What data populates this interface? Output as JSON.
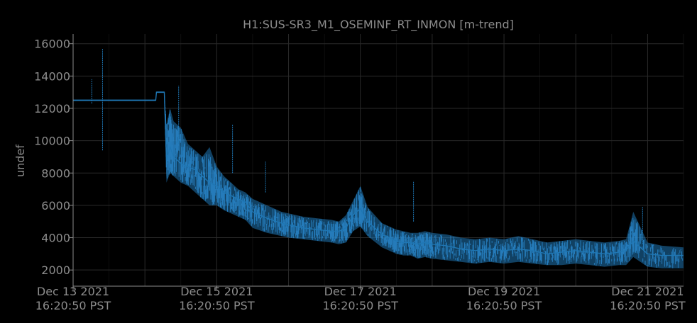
{
  "chart_data": {
    "type": "line",
    "title": "H1:SUS-SR3_M1_OSEMINF_RT_INMON [m-trend]",
    "xlabel": "",
    "ylabel": "undef",
    "x_ticks": [
      {
        "line1": "Dec 13 2021",
        "line2": "16:20:50 PST",
        "day": 0
      },
      {
        "line1": "Dec 15 2021",
        "line2": "16:20:50 PST",
        "day": 2
      },
      {
        "line1": "Dec 17 2021",
        "line2": "16:20:50 PST",
        "day": 4
      },
      {
        "line1": "Dec 19 2021",
        "line2": "16:20:50 PST",
        "day": 6
      },
      {
        "line1": "Dec 21 2021",
        "line2": "16:20:50 PST",
        "day": 8
      }
    ],
    "y_ticks": [
      2000,
      4000,
      6000,
      8000,
      10000,
      12000,
      14000,
      16000
    ],
    "xlim": [
      0,
      8.5
    ],
    "ylim": [
      1000,
      16600
    ],
    "grid": true,
    "colors": {
      "series": "#1f77b4",
      "background": "#000000",
      "text": "#8c8c8c",
      "grid": "#2a2a2a"
    },
    "series": [
      {
        "x": [
          0,
          0.5,
          1.0,
          1.15,
          1.16,
          1.27,
          1.3,
          1.35,
          1.4,
          1.5,
          1.6,
          1.7,
          1.8,
          1.9,
          2.0,
          2.1,
          2.2,
          2.3,
          2.4,
          2.5,
          2.7,
          2.9,
          3.0,
          3.2,
          3.4,
          3.6,
          3.7,
          3.8,
          3.9,
          4.0,
          4.1,
          4.3,
          4.4,
          4.5,
          4.6,
          4.7,
          4.8,
          4.9,
          5.0,
          5.2,
          5.4,
          5.6,
          5.8,
          6.0,
          6.2,
          6.4,
          6.6,
          6.8,
          7.0,
          7.2,
          7.4,
          7.6,
          7.7,
          7.8,
          8.0,
          8.2,
          8.5
        ],
        "y": [
          12500,
          12500,
          12500,
          12500,
          13000,
          13000,
          8800,
          9600,
          9000,
          8600,
          8400,
          8200,
          7800,
          7400,
          7200,
          6800,
          6600,
          6400,
          6200,
          5600,
          5200,
          4900,
          4800,
          4600,
          4500,
          4400,
          4400,
          4600,
          5400,
          5800,
          5000,
          4200,
          4000,
          3800,
          3700,
          3700,
          3600,
          3700,
          3600,
          3500,
          3300,
          3200,
          3300,
          3200,
          3300,
          3200,
          3000,
          3100,
          3200,
          3100,
          3000,
          3100,
          3200,
          3800,
          3000,
          2900,
          2900
        ],
        "band_low": [
          12450,
          12450,
          12450,
          12450,
          12950,
          12950,
          7400,
          8000,
          7800,
          7400,
          7200,
          6800,
          6400,
          6000,
          6000,
          5700,
          5500,
          5300,
          5100,
          4600,
          4300,
          4100,
          4000,
          3900,
          3800,
          3700,
          3600,
          3700,
          4400,
          4700,
          4100,
          3400,
          3200,
          3000,
          2900,
          2900,
          2700,
          2800,
          2700,
          2600,
          2500,
          2400,
          2500,
          2400,
          2500,
          2400,
          2300,
          2300,
          2400,
          2300,
          2200,
          2300,
          2300,
          2800,
          2200,
          2100,
          2100
        ],
        "band_high": [
          12550,
          12550,
          12550,
          12550,
          13050,
          13050,
          11000,
          12000,
          11200,
          10800,
          9800,
          9400,
          9000,
          9600,
          8400,
          7800,
          7400,
          7000,
          6800,
          6400,
          6000,
          5600,
          5500,
          5300,
          5200,
          5100,
          5000,
          5400,
          6300,
          7200,
          5900,
          4900,
          4700,
          4500,
          4400,
          4300,
          4300,
          4400,
          4300,
          4200,
          4000,
          3900,
          4000,
          3900,
          4100,
          3900,
          3700,
          3800,
          3900,
          3800,
          3700,
          3800,
          3900,
          5600,
          3700,
          3500,
          3400
        ]
      }
    ],
    "spikes": [
      {
        "x": 0.26,
        "y1": 12300,
        "y2": 13800
      },
      {
        "x": 0.41,
        "y1": 9400,
        "y2": 15700
      },
      {
        "x": 1.47,
        "y1": 9800,
        "y2": 13400
      },
      {
        "x": 2.22,
        "y1": 8000,
        "y2": 11000
      },
      {
        "x": 2.68,
        "y1": 6800,
        "y2": 8700
      },
      {
        "x": 4.74,
        "y1": 5000,
        "y2": 7500
      },
      {
        "x": 7.93,
        "y1": 3600,
        "y2": 5900
      }
    ]
  }
}
